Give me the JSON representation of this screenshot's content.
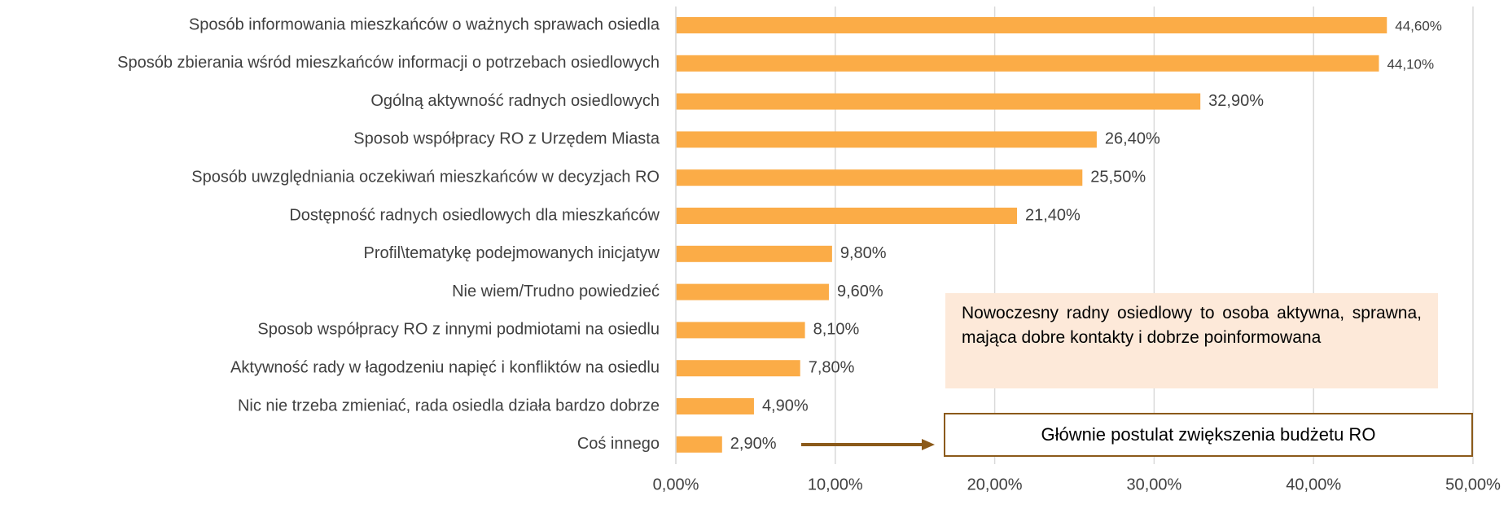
{
  "chart_data": {
    "type": "hbar",
    "categories": [
      "Sposób informowania mieszkańców o ważnych sprawach osiedla",
      "Sposób zbierania wśród mieszkańców informacji o potrzebach osiedlowych",
      "Ogólną aktywność radnych osiedlowych",
      "Sposob współpracy RO z Urzędem Miasta",
      "Sposób uwzględniania oczekiwań mieszkańców w decyzjach RO",
      "Dostępność radnych osiedlowych dla mieszkańców",
      "Profil\\tematykę podejmowanych inicjatyw",
      "Nie wiem/Trudno powiedzieć",
      "Sposob współpracy RO z innymi podmiotami na osiedlu",
      "Aktywność rady w łagodzeniu napięć i konfliktów na osiedlu",
      "Nic nie trzeba zmieniać, rada osiedla działa bardzo dobrze",
      "Coś innego"
    ],
    "values": [
      44.6,
      44.1,
      32.9,
      26.4,
      25.5,
      21.4,
      9.8,
      9.6,
      8.1,
      7.8,
      4.9,
      2.9
    ],
    "value_labels": [
      "44,60%",
      "44,10%",
      "32,90%",
      "26,40%",
      "25,50%",
      "21,40%",
      "9,80%",
      "9,60%",
      "8,10%",
      "7,80%",
      "4,90%",
      "2,90%"
    ],
    "color": "#fbac47",
    "xlim": [
      0,
      50
    ],
    "xticks": [
      {
        "value": 0,
        "label": "0,00%"
      },
      {
        "value": 10,
        "label": "10,00%"
      },
      {
        "value": 20,
        "label": "20,00%"
      },
      {
        "value": 30,
        "label": "30,00%"
      },
      {
        "value": 40,
        "label": "40,00%"
      },
      {
        "value": 50,
        "label": "50,00%"
      }
    ],
    "grid": true,
    "annotations": [
      "Nowoczesny radny osiedlowy to osoba aktywna, sprawna, mająca dobre kontakty i dobrze poinformowana",
      "Głównie postulat zwiększenia budżetu RO"
    ]
  }
}
